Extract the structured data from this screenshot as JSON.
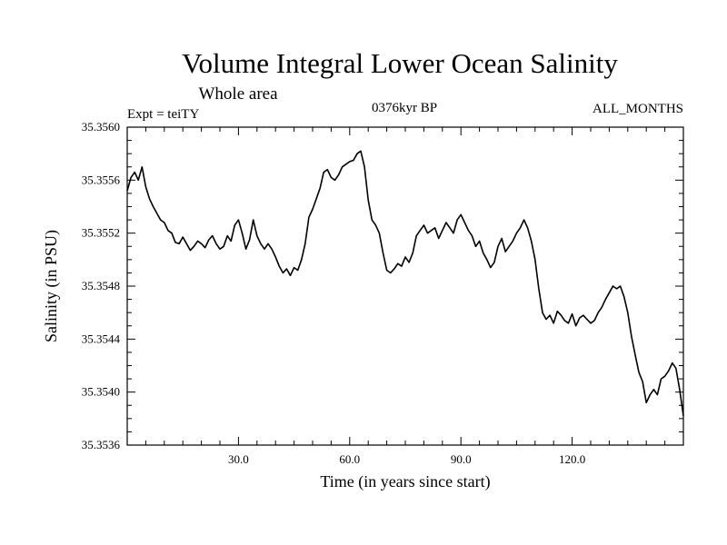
{
  "chart_data": {
    "type": "line",
    "title": "Volume Integral Lower Ocean Salinity",
    "subtitle": "Whole area",
    "experiment": "Expt = teiTY",
    "epoch": "0376kyr BP",
    "season": "ALL_MONTHS",
    "xlabel": "Time (in years since start)",
    "ylabel": "Salinity (in PSU)",
    "xlim": [
      0,
      150
    ],
    "ylim": [
      35.3536,
      35.356
    ],
    "xticks": [
      30,
      60,
      90,
      120
    ],
    "xtick_labels": [
      "30.0",
      "60.0",
      "90.0",
      "120.0"
    ],
    "yticks": [
      35.3536,
      35.354,
      35.3544,
      35.3548,
      35.3552,
      35.3556,
      35.356
    ],
    "ytick_labels": [
      "35.3536",
      "35.3540",
      "35.3544",
      "35.3548",
      "35.3552",
      "35.3556",
      "35.3560"
    ],
    "grid": false,
    "series": [
      {
        "name": "salinity",
        "color": "#000000",
        "x": [
          0,
          1,
          2,
          3,
          4,
          5,
          6,
          7,
          8,
          9,
          10,
          11,
          12,
          13,
          14,
          15,
          16,
          17,
          18,
          19,
          20,
          21,
          22,
          23,
          24,
          25,
          26,
          27,
          28,
          29,
          30,
          31,
          32,
          33,
          34,
          35,
          36,
          37,
          38,
          39,
          40,
          41,
          42,
          43,
          44,
          45,
          46,
          47,
          48,
          49,
          50,
          51,
          52,
          53,
          54,
          55,
          56,
          57,
          58,
          59,
          60,
          61,
          62,
          63,
          64,
          65,
          66,
          67,
          68,
          69,
          70,
          71,
          72,
          73,
          74,
          75,
          76,
          77,
          78,
          79,
          80,
          81,
          82,
          83,
          84,
          85,
          86,
          87,
          88,
          89,
          90,
          91,
          92,
          93,
          94,
          95,
          96,
          97,
          98,
          99,
          100,
          101,
          102,
          103,
          104,
          105,
          106,
          107,
          108,
          109,
          110,
          111,
          112,
          113,
          114,
          115,
          116,
          117,
          118,
          119,
          120,
          121,
          122,
          123,
          124,
          125,
          126,
          127,
          128,
          129,
          130,
          131,
          132,
          133,
          134,
          135,
          136,
          137,
          138,
          139,
          140,
          141,
          142,
          143,
          144,
          145,
          146,
          147,
          148,
          149,
          150
        ],
        "y": [
          35.35552,
          35.35562,
          35.35566,
          35.3556,
          35.3557,
          35.35555,
          35.35546,
          35.3554,
          35.35535,
          35.3553,
          35.35528,
          35.35522,
          35.3552,
          35.35513,
          35.35512,
          35.35517,
          35.35512,
          35.35507,
          35.3551,
          35.35514,
          35.35512,
          35.35509,
          35.35515,
          35.35518,
          35.35512,
          35.35508,
          35.3551,
          35.35518,
          35.35514,
          35.35526,
          35.3553,
          35.3552,
          35.35508,
          35.35515,
          35.3553,
          35.35518,
          35.35512,
          35.35508,
          35.35512,
          35.35508,
          35.35502,
          35.35495,
          35.3549,
          35.35493,
          35.35488,
          35.35494,
          35.35492,
          35.355,
          35.35512,
          35.35532,
          35.35538,
          35.35546,
          35.35554,
          35.35566,
          35.35568,
          35.35562,
          35.3556,
          35.35564,
          35.3557,
          35.35572,
          35.35574,
          35.35575,
          35.3558,
          35.35582,
          35.3557,
          35.35545,
          35.3553,
          35.35526,
          35.3552,
          35.35505,
          35.35492,
          35.3549,
          35.35493,
          35.35497,
          35.35495,
          35.35502,
          35.35498,
          35.35505,
          35.35518,
          35.35522,
          35.35526,
          35.3552,
          35.35522,
          35.35524,
          35.35516,
          35.35522,
          35.35528,
          35.35524,
          35.3552,
          35.3553,
          35.35534,
          35.35528,
          35.35522,
          35.35518,
          35.3551,
          35.35514,
          35.35505,
          35.355,
          35.35494,
          35.35498,
          35.3551,
          35.35516,
          35.35506,
          35.3551,
          35.35514,
          35.3552,
          35.35524,
          35.3553,
          35.35524,
          35.35514,
          35.355,
          35.35478,
          35.3546,
          35.35455,
          35.35458,
          35.35452,
          35.35461,
          35.35458,
          35.35454,
          35.35452,
          35.35459,
          35.3545,
          35.35456,
          35.35458,
          35.35455,
          35.35452,
          35.35454,
          35.3546,
          35.35464,
          35.3547,
          35.35475,
          35.3548,
          35.35478,
          35.3548,
          35.35472,
          35.3546,
          35.35442,
          35.35428,
          35.35415,
          35.35408,
          35.35392,
          35.35398,
          35.35402,
          35.35398,
          35.3541,
          35.35412,
          35.35416,
          35.35422,
          35.35418,
          35.35402,
          35.35382
        ]
      }
    ]
  }
}
